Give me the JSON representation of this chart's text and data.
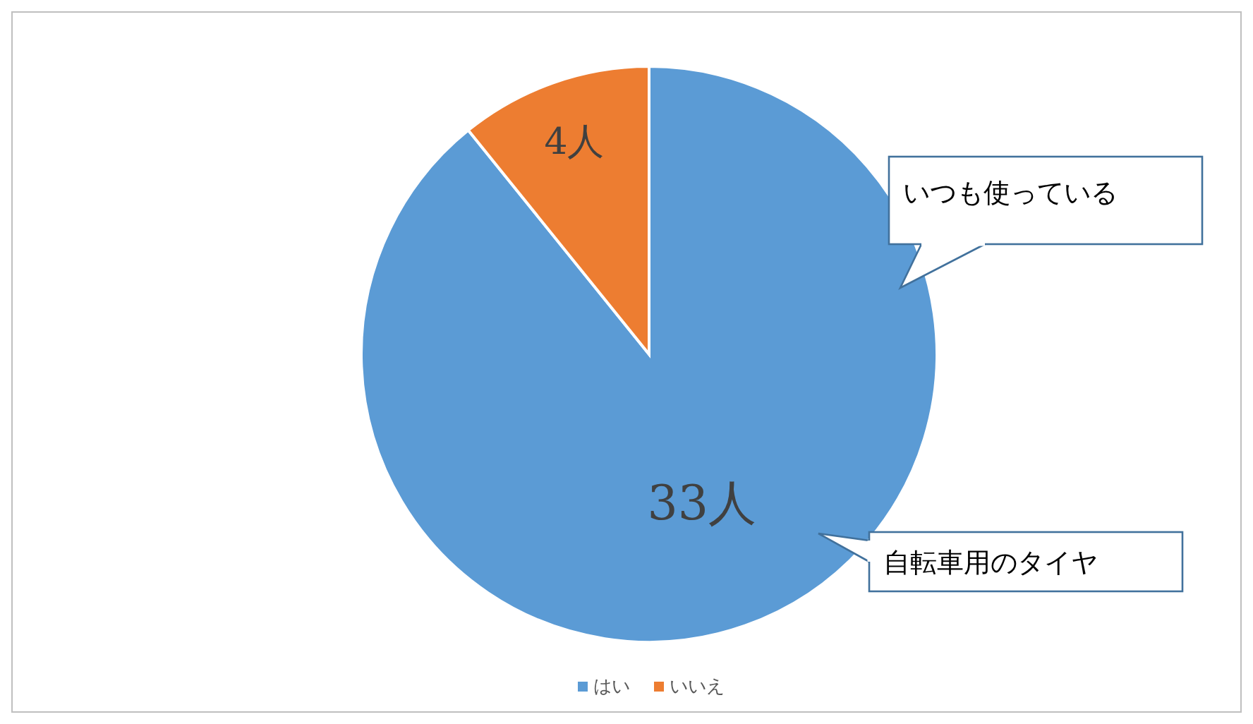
{
  "chart_data": {
    "type": "pie",
    "categories": [
      "はい",
      "いいえ"
    ],
    "values": [
      33,
      4
    ],
    "colors": [
      "#5b9bd5",
      "#ed7d31"
    ],
    "value_labels": [
      "33人",
      "4人"
    ],
    "legend": "bottom",
    "annotations": [
      "いつも使っている",
      "自転車用のタイヤ"
    ]
  }
}
